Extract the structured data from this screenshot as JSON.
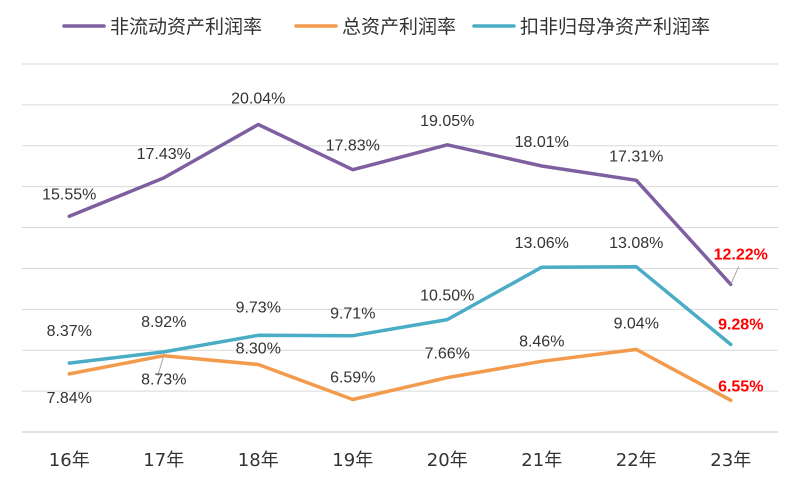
{
  "chart_data": {
    "type": "line",
    "categories": [
      "16年",
      "17年",
      "18年",
      "19年",
      "20年",
      "21年",
      "22年",
      "23年"
    ],
    "series": [
      {
        "name": "非流动资产利润率",
        "color": "#7e5fa0",
        "values": [
          15.55,
          17.43,
          20.04,
          17.83,
          19.05,
          18.01,
          17.31,
          12.22
        ],
        "labels": [
          "15.55%",
          "17.43%",
          "20.04%",
          "17.83%",
          "19.05%",
          "18.01%",
          "17.31%",
          "12.22%"
        ]
      },
      {
        "name": "总资产利润率",
        "color": "#f39b4c",
        "values": [
          7.84,
          8.73,
          8.3,
          6.59,
          7.66,
          8.46,
          9.04,
          6.55
        ],
        "labels": [
          "7.84%",
          "8.73%",
          "8.30%",
          "6.59%",
          "7.66%",
          "8.46%",
          "9.04%",
          "6.55%"
        ]
      },
      {
        "name": "扣非归母净资产利润率",
        "color": "#4bacc6",
        "values": [
          8.37,
          8.92,
          9.73,
          9.71,
          10.5,
          13.06,
          13.08,
          9.28
        ],
        "labels": [
          "8.37%",
          "8.92%",
          "9.73%",
          "9.71%",
          "10.50%",
          "13.06%",
          "13.08%",
          "9.28%"
        ]
      }
    ],
    "highlight_color": "#ff0000",
    "ylim": [
      5,
      23
    ],
    "grid": true,
    "legend": "top"
  }
}
